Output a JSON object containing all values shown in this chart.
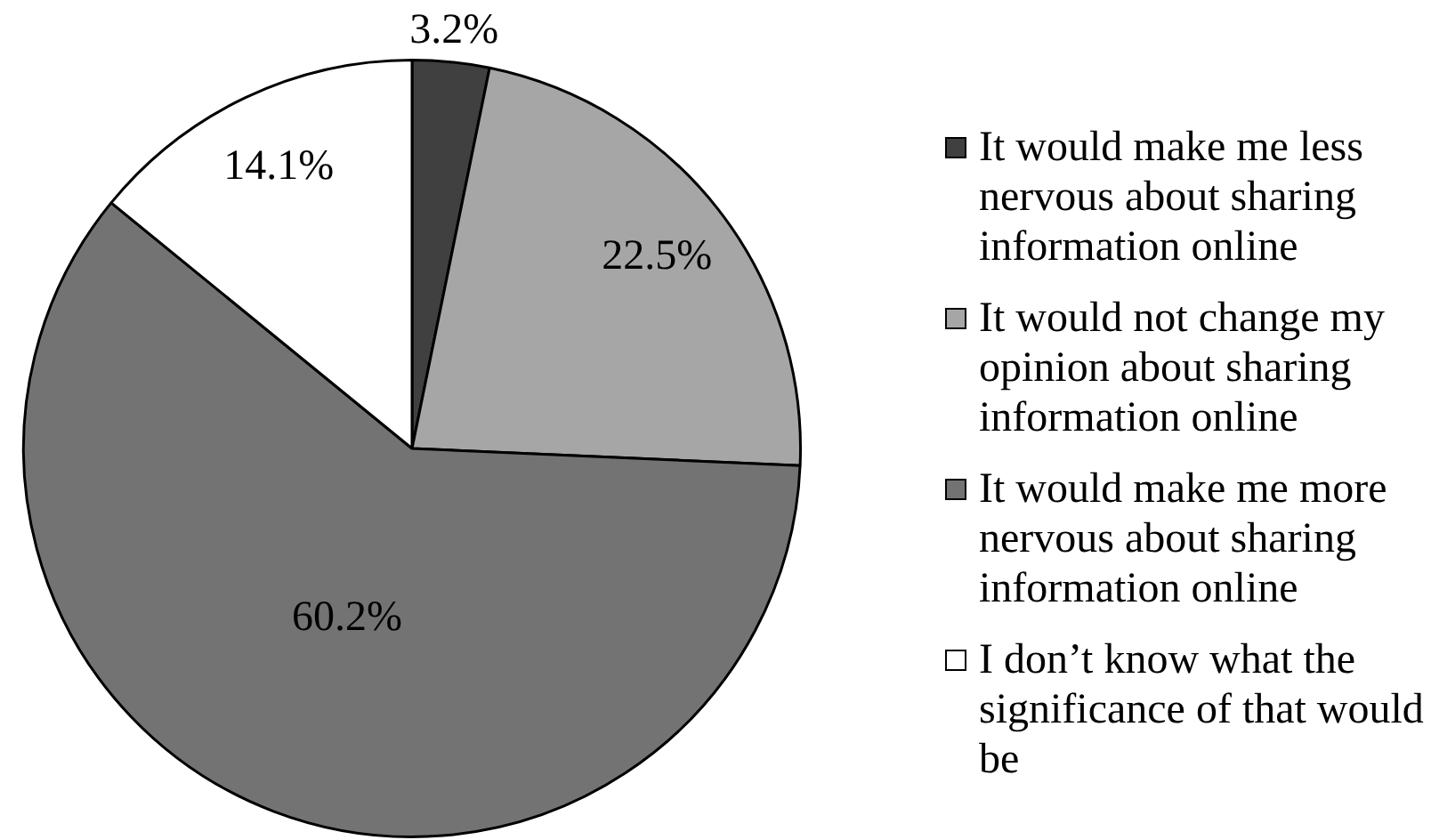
{
  "chart_data": {
    "type": "pie",
    "categories": [
      "It would make me less nervous about sharing information online",
      "It would not change my opinion about sharing information online",
      "It would make me more nervous about sharing information online",
      "I don’t know what the significance of that would be"
    ],
    "values": [
      3.2,
      22.5,
      60.2,
      14.1
    ],
    "colors": [
      "#404040",
      "#a6a6a6",
      "#737373",
      "#ffffff"
    ],
    "value_labels": [
      "3.2%",
      "22.5%",
      "60.2%",
      "14.1%"
    ],
    "legend": "right"
  }
}
